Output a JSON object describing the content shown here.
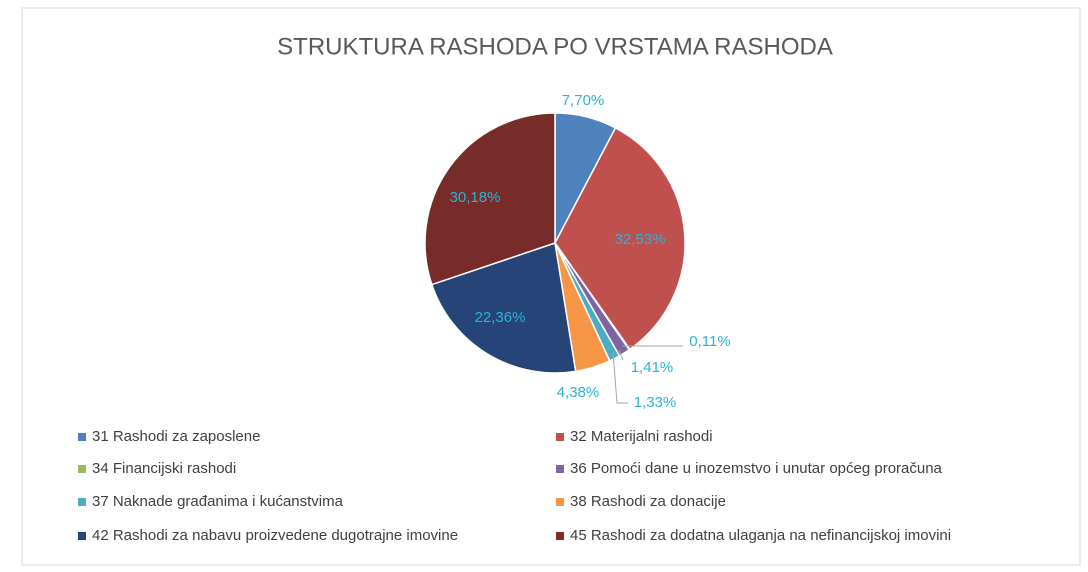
{
  "chart_data": {
    "type": "pie",
    "title": "STRUKTURA RASHODA PO VRSTAMA RASHODA",
    "categories": [
      "31 Rashodi za zaposlene",
      "32 Materijalni rashodi",
      "34 Financijski rashodi",
      "36 Pomoći dane u inozemstvo i unutar općeg proračuna",
      "37 Naknade građanima i kućanstvima",
      "38 Rashodi za donacije",
      "42 Rashodi za nabavu proizvedene dugotrajne imovine",
      "45 Rashodi za dodatna ulaganja na nefinancijskoj imovini"
    ],
    "values": [
      7.7,
      32.53,
      0.11,
      1.41,
      1.33,
      4.38,
      22.36,
      30.18
    ],
    "value_labels": [
      "7,70%",
      "32,53%",
      "0,11%",
      "1,41%",
      "1,33%",
      "4,38%",
      "22,36%",
      "30,18%"
    ],
    "colors": [
      "#4f81bd",
      "#c0504d",
      "#9bbb59",
      "#8064a2",
      "#4bacc6",
      "#f79646",
      "#264478",
      "#772c2a"
    ],
    "legend": "bottom"
  }
}
